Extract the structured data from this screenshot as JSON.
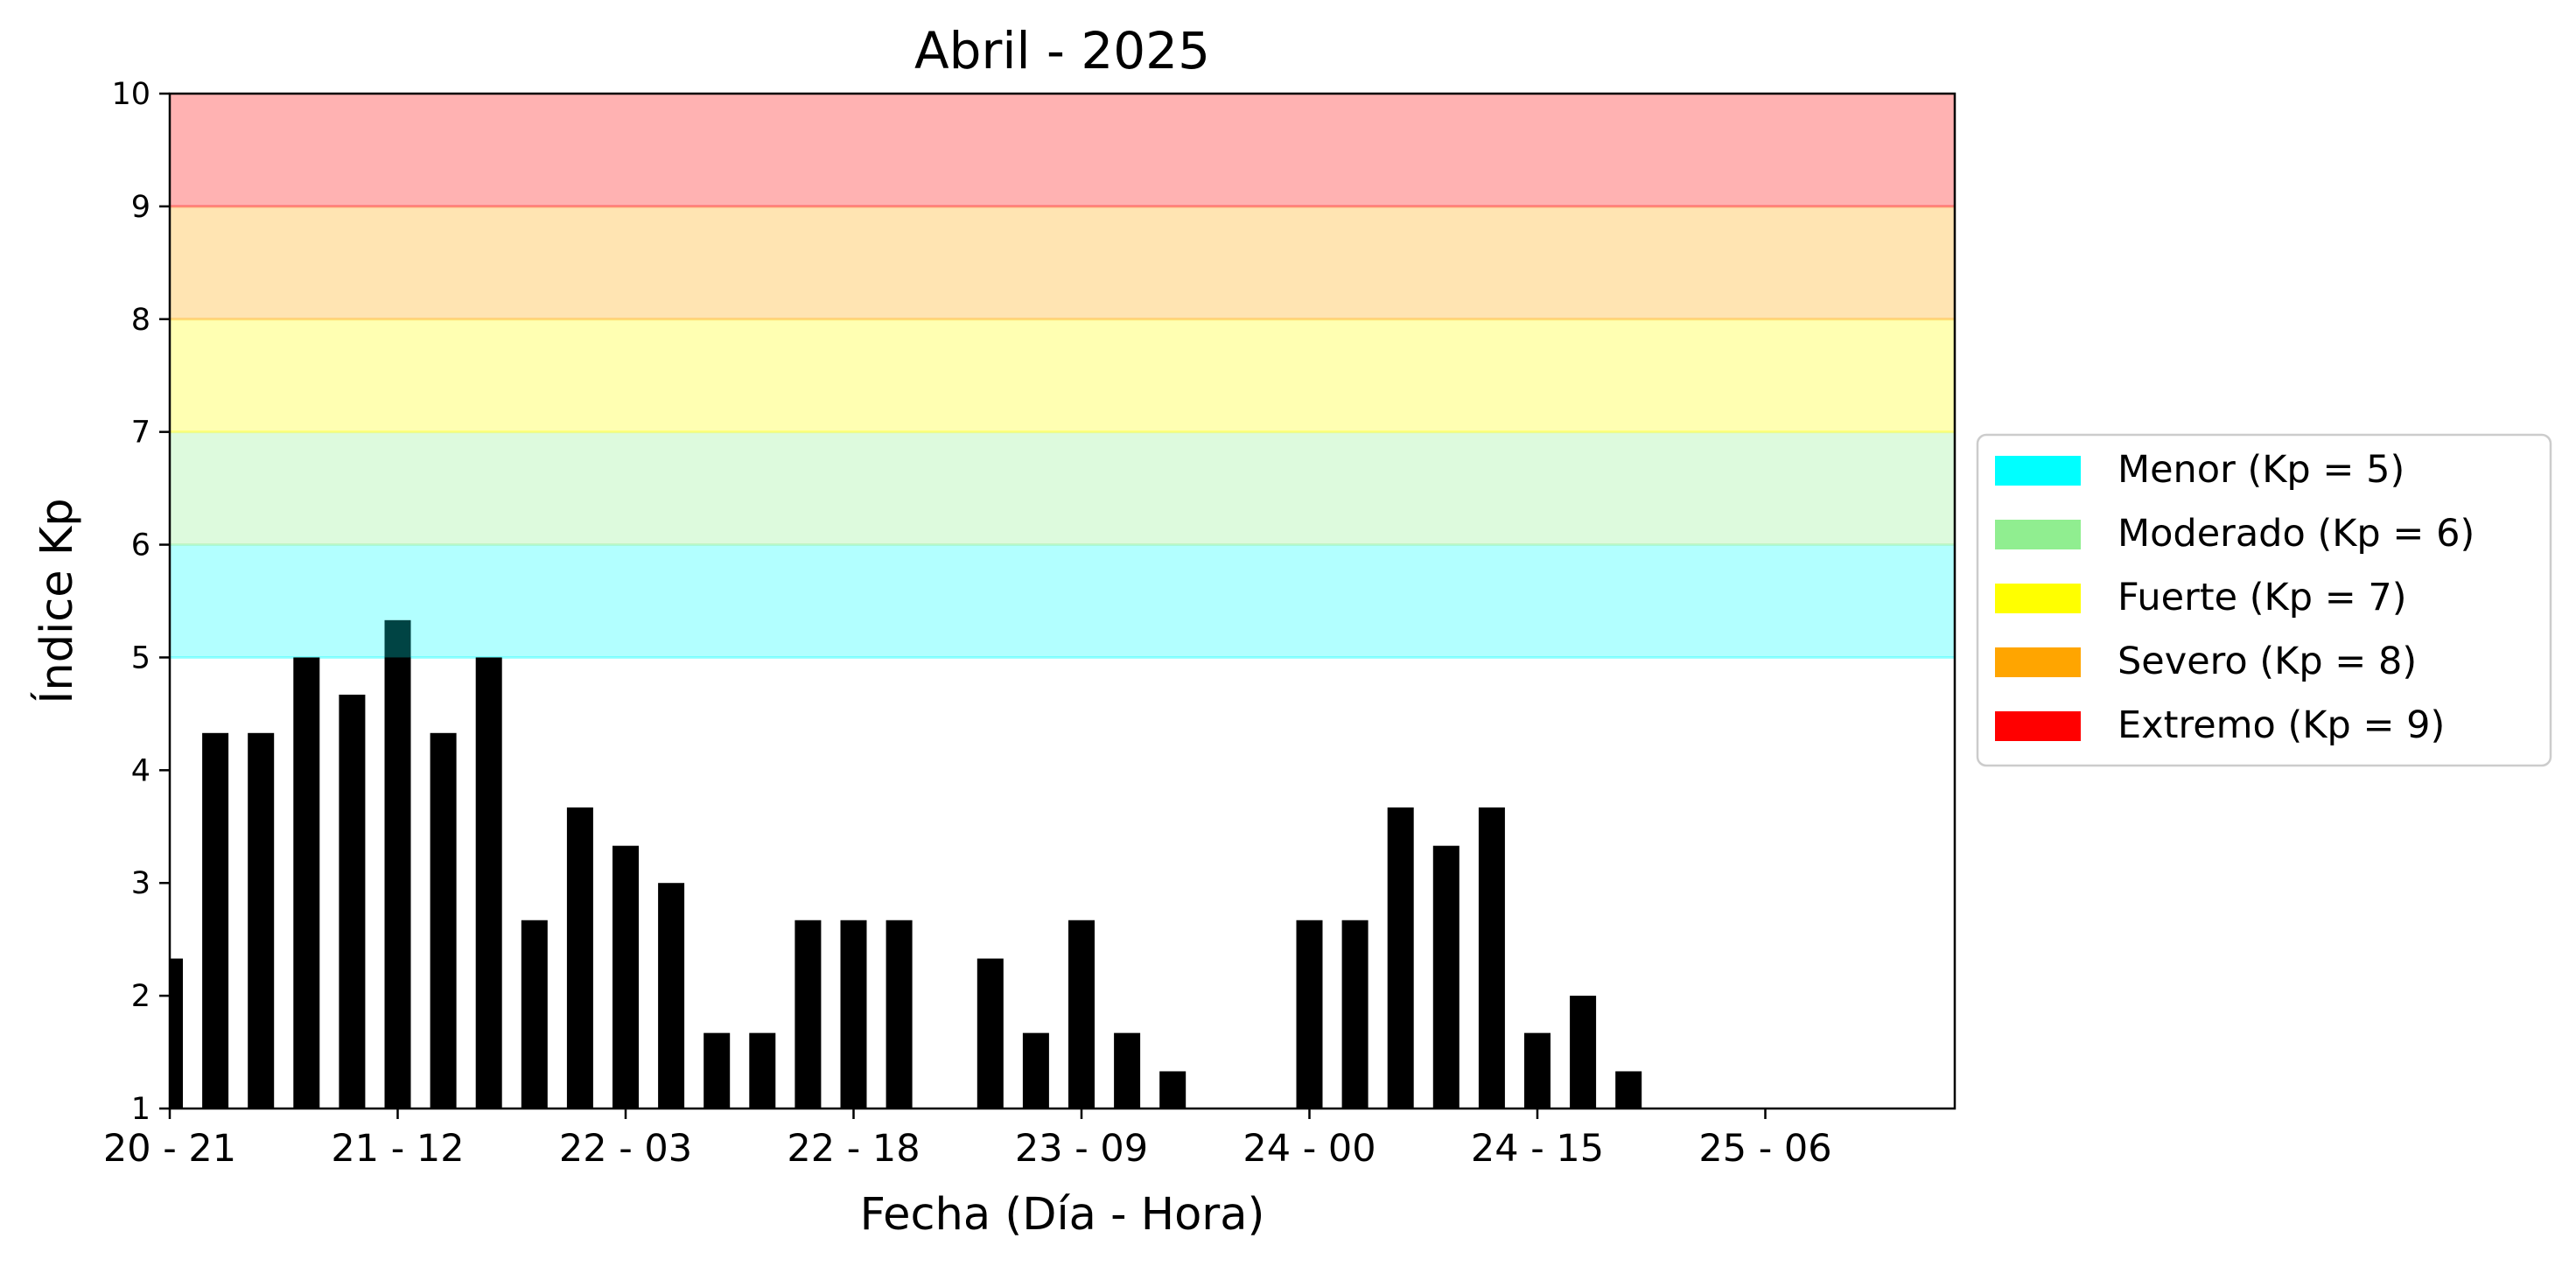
{
  "chart_data": {
    "type": "bar",
    "title": "Abril - 2025",
    "xlabel": "Fecha (Día - Hora)",
    "ylabel": "Índice Kp",
    "ylim": [
      1,
      10
    ],
    "yticks": [
      "1",
      "2",
      "3",
      "4",
      "5",
      "6",
      "7",
      "8",
      "9",
      "10"
    ],
    "xticks": [
      "20 - 21",
      "21 - 12",
      "22 - 03",
      "22 - 18",
      "23 - 09",
      "24 - 00",
      "24 - 15",
      "25 - 06"
    ],
    "bar_color": "#000000",
    "bar_overlap_color": "#004444",
    "values": [
      2.33,
      4.33,
      4.33,
      5.0,
      4.67,
      5.33,
      4.33,
      5.0,
      2.67,
      3.67,
      3.33,
      3.0,
      1.67,
      1.67,
      2.67,
      2.67,
      2.67,
      null,
      2.33,
      1.67,
      2.67,
      1.67,
      1.33,
      null,
      null,
      2.67,
      2.67,
      3.67,
      3.33,
      3.67,
      1.67,
      2.0,
      1.33
    ],
    "bands": [
      {
        "from": 5,
        "to": 6,
        "color": "#00ffff",
        "opacity": 0.3
      },
      {
        "from": 6,
        "to": 7,
        "color": "#90ee90",
        "opacity": 0.3
      },
      {
        "from": 7,
        "to": 8,
        "color": "#ffff00",
        "opacity": 0.3
      },
      {
        "from": 8,
        "to": 9,
        "color": "#ffa500",
        "opacity": 0.3
      },
      {
        "from": 9,
        "to": 10,
        "color": "#ff0000",
        "opacity": 0.3
      }
    ],
    "legend_position": "center-right",
    "legend": [
      {
        "label": "Menor (Kp = 5)",
        "color": "#00ffff"
      },
      {
        "label": "Moderado (Kp = 6)",
        "color": "#90ee90"
      },
      {
        "label": "Fuerte (Kp = 7)",
        "color": "#ffff00"
      },
      {
        "label": "Severo (Kp = 8)",
        "color": "#ffa500"
      },
      {
        "label": "Extremo (Kp = 9)",
        "color": "#ff0000"
      }
    ]
  }
}
